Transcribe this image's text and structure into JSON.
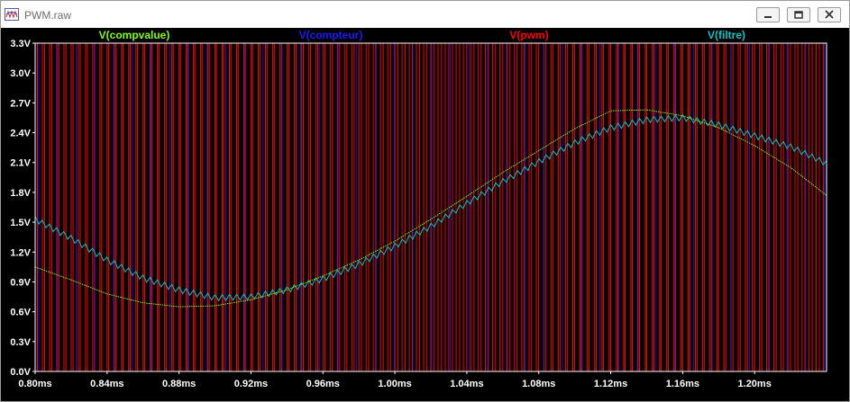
{
  "window": {
    "title": "PWM.raw",
    "buttons": {
      "minimize": "minimize-icon",
      "restore": "restore-icon",
      "close": "close-icon"
    }
  },
  "colors": {
    "plot_bg": "#000000",
    "frame": "#ffffff",
    "grid": "#808080",
    "compvalue": "#7fff00",
    "compteur": "#1a1aff",
    "pwm": "#ff0000",
    "filtre": "#00c8c8"
  },
  "chart_data": {
    "type": "line",
    "grid": false,
    "legend": "top",
    "xlim": [
      0.8,
      1.24
    ],
    "ylim": [
      0.0,
      3.3
    ],
    "x_tick_labels": [
      "0.80ms",
      "0.84ms",
      "0.88ms",
      "0.92ms",
      "0.96ms",
      "1.00ms",
      "1.04ms",
      "1.08ms",
      "1.12ms",
      "1.16ms",
      "1.20ms"
    ],
    "x_tick_values": [
      0.8,
      0.84,
      0.88,
      0.92,
      0.96,
      1.0,
      1.04,
      1.08,
      1.12,
      1.16,
      1.2
    ],
    "y_tick_labels": [
      "0.0V",
      "0.3V",
      "0.6V",
      "0.9V",
      "1.2V",
      "1.5V",
      "1.8V",
      "2.1V",
      "2.4V",
      "2.7V",
      "3.0V",
      "3.3V"
    ],
    "y_tick_values": [
      0.0,
      0.3,
      0.6,
      0.9,
      1.2,
      1.5,
      1.8,
      2.1,
      2.4,
      2.7,
      3.0,
      3.3
    ],
    "series": [
      {
        "name": "V(compvalue)",
        "color": "#7fff00",
        "x": [
          0.8,
          0.82,
          0.84,
          0.86,
          0.88,
          0.9,
          0.92,
          0.94,
          0.96,
          0.98,
          1.0,
          1.02,
          1.04,
          1.06,
          1.08,
          1.1,
          1.12,
          1.14,
          1.16,
          1.18,
          1.2,
          1.22,
          1.24
        ],
        "y": [
          1.05,
          0.92,
          0.78,
          0.69,
          0.65,
          0.66,
          0.72,
          0.82,
          0.96,
          1.12,
          1.31,
          1.53,
          1.76,
          2.0,
          2.22,
          2.44,
          2.62,
          2.63,
          2.57,
          2.45,
          2.27,
          2.05,
          1.77
        ]
      },
      {
        "name": "V(compteur)",
        "color": "#1a1aff",
        "description_values": {
          "low": 0.0,
          "high": 3.3
        }
      },
      {
        "name": "V(pwm)",
        "color": "#ff0000",
        "low": 0.0,
        "high": 3.3,
        "period_ms": 0.004
      },
      {
        "name": "V(filtre)",
        "color": "#00c8c8",
        "x": [
          0.8,
          0.82,
          0.84,
          0.86,
          0.88,
          0.9,
          0.92,
          0.94,
          0.96,
          0.98,
          1.0,
          1.02,
          1.04,
          1.06,
          1.08,
          1.1,
          1.12,
          1.14,
          1.16,
          1.18,
          1.2,
          1.22,
          1.24
        ],
        "y": [
          1.53,
          1.34,
          1.12,
          0.94,
          0.82,
          0.74,
          0.75,
          0.82,
          0.93,
          1.08,
          1.26,
          1.46,
          1.69,
          1.91,
          2.11,
          2.3,
          2.45,
          2.53,
          2.55,
          2.48,
          2.37,
          2.26,
          2.09
        ],
        "ripple": 0.06
      }
    ]
  }
}
